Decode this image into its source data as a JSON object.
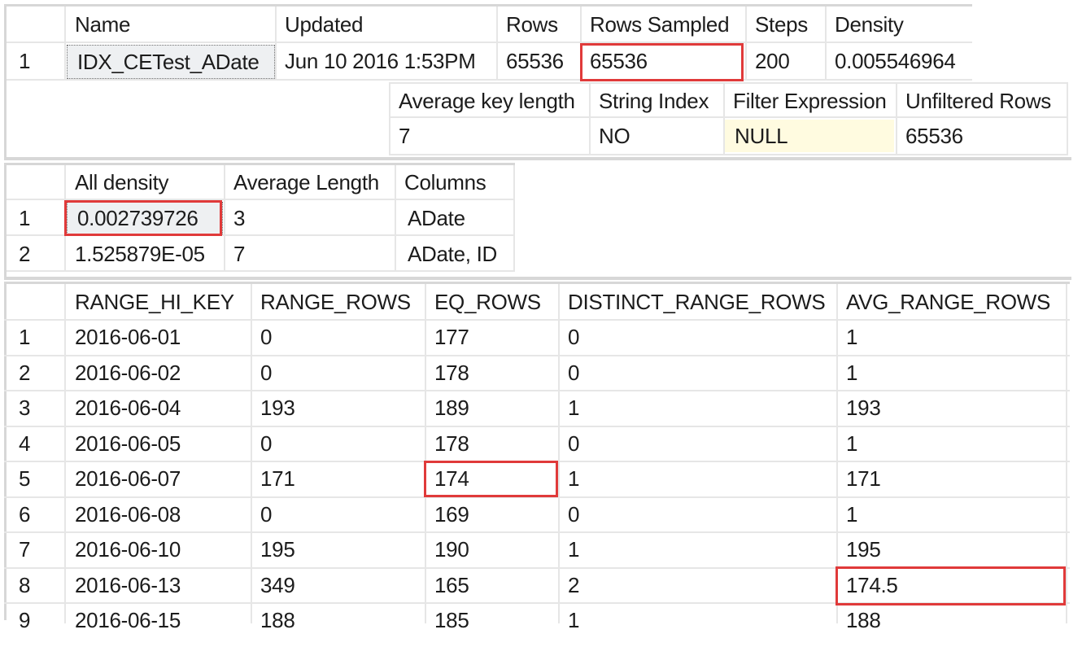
{
  "stats_header": {
    "columns": [
      "Name",
      "Updated",
      "Rows",
      "Rows Sampled",
      "Steps",
      "Density"
    ],
    "row_number": "1",
    "row": [
      "IDX_CETest_ADate",
      "Jun 10 2016  1:53PM",
      "65536",
      "65536",
      "200",
      "0.005546964"
    ],
    "columns2": [
      "Average key length",
      "String Index",
      "Filter Expression",
      "Unfiltered Rows"
    ],
    "row2": [
      "7",
      "NO",
      "NULL",
      "65536"
    ]
  },
  "density_vector": {
    "columns": [
      "All density",
      "Average Length",
      "Columns"
    ],
    "rows": [
      {
        "num": "1",
        "cells": [
          "0.002739726",
          "3",
          "ADate"
        ]
      },
      {
        "num": "2",
        "cells": [
          "1.525879E-05",
          "7",
          "ADate, ID"
        ]
      }
    ]
  },
  "histogram": {
    "columns": [
      "RANGE_HI_KEY",
      "RANGE_ROWS",
      "EQ_ROWS",
      "DISTINCT_RANGE_ROWS",
      "AVG_RANGE_ROWS"
    ],
    "rows": [
      {
        "num": "1",
        "cells": [
          "2016-06-01",
          "0",
          "177",
          "0",
          "1"
        ]
      },
      {
        "num": "2",
        "cells": [
          "2016-06-02",
          "0",
          "178",
          "0",
          "1"
        ]
      },
      {
        "num": "3",
        "cells": [
          "2016-06-04",
          "193",
          "189",
          "1",
          "193"
        ]
      },
      {
        "num": "4",
        "cells": [
          "2016-06-05",
          "0",
          "178",
          "0",
          "1"
        ]
      },
      {
        "num": "5",
        "cells": [
          "2016-06-07",
          "171",
          "174",
          "1",
          "171"
        ]
      },
      {
        "num": "6",
        "cells": [
          "2016-06-08",
          "0",
          "169",
          "0",
          "1"
        ]
      },
      {
        "num": "7",
        "cells": [
          "2016-06-10",
          "195",
          "190",
          "1",
          "195"
        ]
      },
      {
        "num": "8",
        "cells": [
          "2016-06-13",
          "349",
          "165",
          "2",
          "174.5"
        ]
      },
      {
        "num": "9",
        "cells": [
          "2016-06-15",
          "188",
          "185",
          "1",
          "188"
        ]
      }
    ]
  },
  "colors": {
    "highlight": "#e03a3a",
    "gridline": "#e6e6e6",
    "selected_cell_bg": "#eef0f2",
    "null_cell_bg": "#fffbe0"
  }
}
